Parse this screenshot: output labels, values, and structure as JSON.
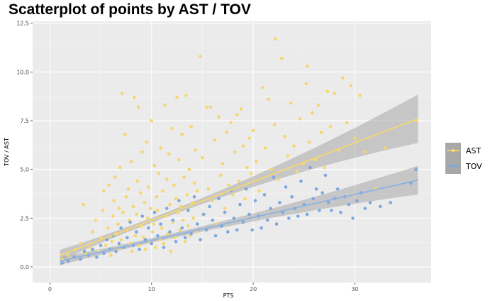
{
  "chart_data": {
    "type": "scatter",
    "title": "Scatterplot of points by AST / TOV",
    "xlabel": "PTS",
    "ylabel": "TOV / AST",
    "xlim": [
      -1.7,
      37.5
    ],
    "ylim": [
      -0.8,
      12.6
    ],
    "x_ticks": [
      0,
      10,
      20,
      30
    ],
    "y_ticks": [
      0.0,
      2.5,
      5.0,
      7.5,
      10.0,
      12.5
    ],
    "x_tick_labels": [
      "0",
      "10",
      "20",
      "30"
    ],
    "y_tick_labels": [
      "0.0",
      "2.5",
      "5.0",
      "7.5",
      "10.0",
      "12.5"
    ],
    "grid": true,
    "legend_position": "right",
    "series": [
      {
        "name": "AST",
        "color": "#F5D76E",
        "points": [
          [
            1.2,
            0.4
          ],
          [
            1.8,
            0.6
          ],
          [
            2.5,
            0.9
          ],
          [
            3.0,
            1.2
          ],
          [
            3.3,
            3.2
          ],
          [
            3.5,
            0.7
          ],
          [
            4.0,
            1.0
          ],
          [
            4.2,
            1.8
          ],
          [
            4.5,
            2.4
          ],
          [
            4.8,
            0.8
          ],
          [
            5.0,
            1.5
          ],
          [
            5.2,
            2.9
          ],
          [
            5.3,
            3.9
          ],
          [
            5.5,
            1.1
          ],
          [
            5.7,
            2.0
          ],
          [
            5.8,
            4.2
          ],
          [
            6.0,
            0.6
          ],
          [
            6.1,
            1.3
          ],
          [
            6.2,
            2.6
          ],
          [
            6.3,
            3.4
          ],
          [
            6.4,
            4.6
          ],
          [
            6.5,
            1.7
          ],
          [
            6.6,
            0.9
          ],
          [
            6.7,
            2.2
          ],
          [
            6.8,
            3.0
          ],
          [
            6.9,
            5.1
          ],
          [
            7.0,
            1.4
          ],
          [
            7.1,
            8.9
          ],
          [
            7.2,
            2.8
          ],
          [
            7.3,
            1.0
          ],
          [
            7.4,
            6.8
          ],
          [
            7.5,
            3.6
          ],
          [
            7.6,
            1.9
          ],
          [
            7.7,
            4.0
          ],
          [
            7.8,
            2.4
          ],
          [
            7.9,
            1.2
          ],
          [
            8.0,
            5.4
          ],
          [
            8.1,
            0.8
          ],
          [
            8.2,
            3.1
          ],
          [
            8.3,
            8.7
          ],
          [
            8.4,
            1.6
          ],
          [
            8.5,
            2.7
          ],
          [
            8.6,
            4.4
          ],
          [
            8.7,
            8.2
          ],
          [
            8.8,
            1.1
          ],
          [
            8.9,
            3.8
          ],
          [
            9.0,
            2.1
          ],
          [
            9.1,
            5.9
          ],
          [
            9.2,
            1.5
          ],
          [
            9.3,
            3.3
          ],
          [
            9.4,
            0.9
          ],
          [
            9.5,
            6.4
          ],
          [
            9.6,
            2.5
          ],
          [
            9.7,
            4.1
          ],
          [
            9.8,
            1.3
          ],
          [
            9.9,
            3.0
          ],
          [
            10.0,
            7.5
          ],
          [
            10.1,
            1.8
          ],
          [
            10.2,
            2.2
          ],
          [
            10.3,
            5.2
          ],
          [
            10.4,
            1.0
          ],
          [
            10.5,
            3.6
          ],
          [
            10.6,
            2.9
          ],
          [
            10.7,
            4.8
          ],
          [
            10.8,
            1.4
          ],
          [
            10.9,
            6.1
          ],
          [
            11.0,
            2.0
          ],
          [
            11.1,
            3.9
          ],
          [
            11.2,
            1.2
          ],
          [
            11.3,
            8.3
          ],
          [
            11.4,
            2.6
          ],
          [
            11.5,
            4.5
          ],
          [
            11.6,
            1.7
          ],
          [
            11.7,
            5.8
          ],
          [
            11.8,
            3.2
          ],
          [
            11.9,
            0.8
          ],
          [
            12.0,
            7.1
          ],
          [
            12.1,
            2.3
          ],
          [
            12.2,
            4.2
          ],
          [
            12.3,
            1.5
          ],
          [
            12.4,
            3.5
          ],
          [
            12.5,
            8.7
          ],
          [
            12.6,
            2.8
          ],
          [
            12.7,
            5.5
          ],
          [
            12.8,
            1.9
          ],
          [
            12.9,
            3.1
          ],
          [
            13.0,
            6.8
          ],
          [
            13.1,
            2.4
          ],
          [
            13.2,
            4.6
          ],
          [
            13.3,
            1.3
          ],
          [
            13.4,
            8.8
          ],
          [
            13.5,
            3.7
          ],
          [
            13.6,
            2.1
          ],
          [
            13.7,
            5.0
          ],
          [
            13.8,
            1.6
          ],
          [
            13.9,
            7.2
          ],
          [
            14.0,
            3.3
          ],
          [
            14.1,
            2.5
          ],
          [
            14.2,
            4.3
          ],
          [
            14.3,
            6.0
          ],
          [
            14.4,
            1.8
          ],
          [
            14.5,
            3.9
          ],
          [
            14.8,
            10.8
          ],
          [
            15.0,
            5.6
          ],
          [
            15.2,
            2.7
          ],
          [
            15.4,
            8.2
          ],
          [
            15.6,
            4.0
          ],
          [
            15.8,
            8.2
          ],
          [
            16.0,
            3.4
          ],
          [
            16.2,
            6.5
          ],
          [
            16.4,
            2.2
          ],
          [
            16.6,
            7.7
          ],
          [
            16.8,
            4.7
          ],
          [
            17.0,
            5.3
          ],
          [
            17.2,
            3.0
          ],
          [
            17.4,
            6.9
          ],
          [
            17.6,
            4.2
          ],
          [
            17.8,
            7.4
          ],
          [
            18.0,
            3.7
          ],
          [
            18.2,
            5.9
          ],
          [
            18.4,
            7.8
          ],
          [
            18.6,
            4.4
          ],
          [
            18.8,
            8.1
          ],
          [
            19.0,
            6.2
          ],
          [
            19.2,
            3.5
          ],
          [
            19.4,
            5.1
          ],
          [
            19.6,
            6.6
          ],
          [
            19.8,
            4.8
          ],
          [
            20.0,
            7.0
          ],
          [
            20.3,
            5.4
          ],
          [
            20.6,
            3.9
          ],
          [
            20.9,
            9.2
          ],
          [
            21.2,
            6.1
          ],
          [
            21.5,
            8.6
          ],
          [
            21.8,
            5.0
          ],
          [
            22.1,
            7.3
          ],
          [
            22.2,
            11.7
          ],
          [
            22.5,
            4.5
          ],
          [
            22.8,
            10.7
          ],
          [
            23.1,
            6.7
          ],
          [
            23.4,
            5.7
          ],
          [
            23.7,
            8.4
          ],
          [
            24.0,
            6.2
          ],
          [
            24.3,
            4.9
          ],
          [
            24.6,
            7.6
          ],
          [
            24.9,
            5.3
          ],
          [
            25.2,
            9.4
          ],
          [
            25.3,
            10.3
          ],
          [
            25.5,
            6.4
          ],
          [
            25.8,
            7.9
          ],
          [
            26.1,
            5.5
          ],
          [
            26.4,
            8.3
          ],
          [
            26.7,
            6.9
          ],
          [
            27.0,
            5.1
          ],
          [
            27.3,
            9.0
          ],
          [
            27.6,
            7.2
          ],
          [
            28.0,
            8.9
          ],
          [
            28.4,
            6.0
          ],
          [
            28.8,
            9.7
          ],
          [
            29.2,
            7.4
          ],
          [
            29.6,
            9.3
          ],
          [
            30.0,
            6.6
          ],
          [
            30.5,
            8.8
          ],
          [
            31.0,
            5.9
          ],
          [
            32.0,
            4.0
          ],
          [
            33.0,
            6.1
          ],
          [
            36.0,
            7.5
          ]
        ]
      },
      {
        "name": "TOV",
        "color": "#7DA7DF",
        "points": [
          [
            1.2,
            0.2
          ],
          [
            1.8,
            0.3
          ],
          [
            2.4,
            0.5
          ],
          [
            3.0,
            0.4
          ],
          [
            3.4,
            0.8
          ],
          [
            3.8,
            0.6
          ],
          [
            4.2,
            0.9
          ],
          [
            4.6,
            0.5
          ],
          [
            5.0,
            1.1
          ],
          [
            5.3,
            0.7
          ],
          [
            5.6,
            1.4
          ],
          [
            5.9,
            0.9
          ],
          [
            6.2,
            1.6
          ],
          [
            6.5,
            0.8
          ],
          [
            6.8,
            1.2
          ],
          [
            7.0,
            2.0
          ],
          [
            7.3,
            1.0
          ],
          [
            7.6,
            1.5
          ],
          [
            7.9,
            2.3
          ],
          [
            8.2,
            1.1
          ],
          [
            8.5,
            1.8
          ],
          [
            8.8,
            0.9
          ],
          [
            9.1,
            2.6
          ],
          [
            9.4,
            1.4
          ],
          [
            9.7,
            2.0
          ],
          [
            10.0,
            1.2
          ],
          [
            10.3,
            2.8
          ],
          [
            10.6,
            1.6
          ],
          [
            10.9,
            2.2
          ],
          [
            11.2,
            1.0
          ],
          [
            11.5,
            3.0
          ],
          [
            11.8,
            1.8
          ],
          [
            12.1,
            2.4
          ],
          [
            12.4,
            1.3
          ],
          [
            12.7,
            3.4
          ],
          [
            13.0,
            2.0
          ],
          [
            13.3,
            1.5
          ],
          [
            13.6,
            2.9
          ],
          [
            13.9,
            1.7
          ],
          [
            14.2,
            3.6
          ],
          [
            14.5,
            2.2
          ],
          [
            14.8,
            1.4
          ],
          [
            15.1,
            2.7
          ],
          [
            15.4,
            1.9
          ],
          [
            15.7,
            3.1
          ],
          [
            16.0,
            2.4
          ],
          [
            16.3,
            1.6
          ],
          [
            16.6,
            3.5
          ],
          [
            16.9,
            2.1
          ],
          [
            17.2,
            2.8
          ],
          [
            17.5,
            1.8
          ],
          [
            17.8,
            3.9
          ],
          [
            18.1,
            2.5
          ],
          [
            18.4,
            1.9
          ],
          [
            18.7,
            3.2
          ],
          [
            19.0,
            2.3
          ],
          [
            19.3,
            4.0
          ],
          [
            19.6,
            2.7
          ],
          [
            19.9,
            1.9
          ],
          [
            20.2,
            3.4
          ],
          [
            20.5,
            2.6
          ],
          [
            20.8,
            2.0
          ],
          [
            21.1,
            3.7
          ],
          [
            21.4,
            2.4
          ],
          [
            21.7,
            3.0
          ],
          [
            22.0,
            4.6
          ],
          [
            22.3,
            2.2
          ],
          [
            22.6,
            3.3
          ],
          [
            22.9,
            2.8
          ],
          [
            23.2,
            4.1
          ],
          [
            23.5,
            2.5
          ],
          [
            23.8,
            3.6
          ],
          [
            24.1,
            3.0
          ],
          [
            24.4,
            2.6
          ],
          [
            24.7,
            4.4
          ],
          [
            25.0,
            3.2
          ],
          [
            25.3,
            2.7
          ],
          [
            25.6,
            5.1
          ],
          [
            25.9,
            3.5
          ],
          [
            26.2,
            4.0
          ],
          [
            26.5,
            2.9
          ],
          [
            26.8,
            3.8
          ],
          [
            27.1,
            4.7
          ],
          [
            27.4,
            3.3
          ],
          [
            27.7,
            2.9
          ],
          [
            28.0,
            3.5
          ],
          [
            28.3,
            4.0
          ],
          [
            28.6,
            2.8
          ],
          [
            29.0,
            3.6
          ],
          [
            29.4,
            3.2
          ],
          [
            29.8,
            2.5
          ],
          [
            30.2,
            3.4
          ],
          [
            30.6,
            3.8
          ],
          [
            31.0,
            3.0
          ],
          [
            31.5,
            3.3
          ],
          [
            32.5,
            3.1
          ],
          [
            33.5,
            3.3
          ],
          [
            35.5,
            4.3
          ],
          [
            36.0,
            5.0
          ]
        ]
      }
    ],
    "trend_lines": [
      {
        "name": "AST",
        "x": [
          1.0,
          36.2
        ],
        "y": [
          0.6,
          7.6
        ],
        "color": "#F5D76E"
      },
      {
        "name": "TOV",
        "x": [
          1.0,
          36.2
        ],
        "y": [
          0.3,
          4.45
        ],
        "color": "#8EB2E0"
      }
    ],
    "legend": [
      {
        "label": "AST",
        "color": "#F5D76E"
      },
      {
        "label": "TOV",
        "color": "#7DA7DF"
      }
    ]
  }
}
